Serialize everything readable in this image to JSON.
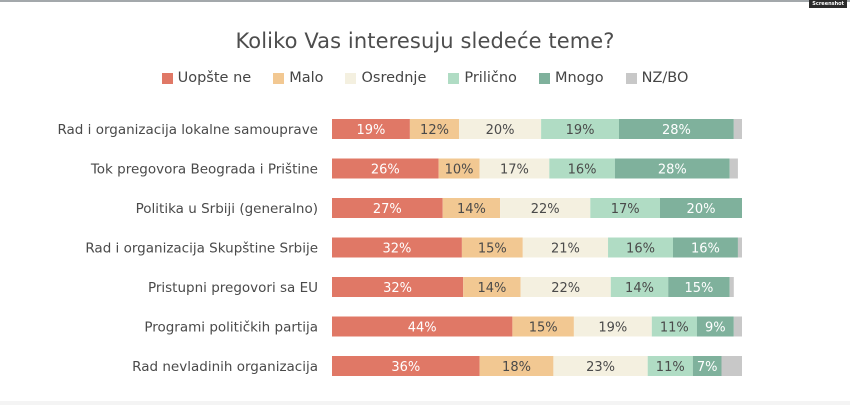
{
  "watermark": "Screenshot",
  "chart_data": {
    "type": "bar",
    "orientation": "horizontal",
    "stacked": true,
    "title": "Koliko Vas interesuju sledeće teme?",
    "xlabel": "",
    "ylabel": "",
    "xlim": [
      0,
      100
    ],
    "grid": false,
    "legend_position": "top-center",
    "categories": [
      "Rad i organizacija lokalne samouprave",
      "Tok pregovora Beograda i Prištine",
      "Politika u Srbiji (generalno)",
      "Rad i organizacija Skupštine Srbije",
      "Pristupni pregovori sa EU",
      "Programi političkih partija",
      "Rad nevladinih organizacija"
    ],
    "series": [
      {
        "name": "Uopšte ne",
        "color": "#E07866",
        "label_color": "#ffffff",
        "values": [
          19,
          26,
          27,
          32,
          32,
          44,
          36
        ]
      },
      {
        "name": "Malo",
        "color": "#F2C892",
        "label_color": "#4a4a4a",
        "values": [
          12,
          10,
          14,
          15,
          14,
          15,
          18
        ]
      },
      {
        "name": "Osrednje",
        "color": "#F4F0E0",
        "label_color": "#4a4a4a",
        "values": [
          20,
          17,
          22,
          21,
          22,
          19,
          23
        ]
      },
      {
        "name": "Prilično",
        "color": "#B0DCC4",
        "label_color": "#4a4a4a",
        "values": [
          19,
          16,
          17,
          16,
          14,
          11,
          11
        ]
      },
      {
        "name": "Mnogo",
        "color": "#7FB19C",
        "label_color": "#ffffff",
        "values": [
          28,
          28,
          20,
          16,
          15,
          9,
          7
        ]
      },
      {
        "name": "NZ/BO",
        "color": "#C8C8C8",
        "label_color": "#4a4a4a",
        "values": [
          2,
          2,
          0,
          1,
          1,
          2,
          5
        ],
        "show_labels": false
      }
    ],
    "value_suffix": "%"
  }
}
